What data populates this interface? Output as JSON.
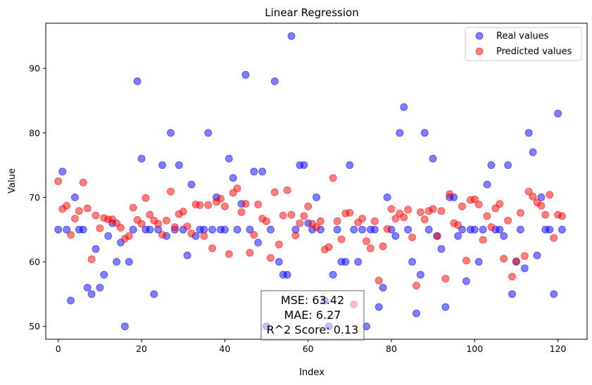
{
  "chart_data": {
    "type": "scatter",
    "title": "Linear Regression",
    "xlabel": "Index",
    "ylabel": "Value",
    "xlim": [
      -3,
      127
    ],
    "ylim": [
      48,
      97
    ],
    "xticks": [
      0,
      20,
      40,
      60,
      80,
      100,
      120
    ],
    "yticks": [
      50,
      60,
      70,
      80,
      90
    ],
    "grid": false,
    "legend_position": "top-right",
    "series": [
      {
        "name": "Real values",
        "color": "#0000ff",
        "x": [
          0,
          1,
          2,
          3,
          4,
          5,
          6,
          7,
          8,
          9,
          10,
          11,
          12,
          13,
          14,
          15,
          16,
          17,
          18,
          19,
          20,
          21,
          22,
          23,
          24,
          25,
          26,
          27,
          28,
          29,
          30,
          31,
          32,
          33,
          34,
          35,
          36,
          37,
          38,
          39,
          40,
          41,
          42,
          43,
          44,
          45,
          46,
          47,
          48,
          49,
          50,
          51,
          52,
          53,
          54,
          55,
          56,
          57,
          58,
          59,
          60,
          61,
          62,
          63,
          64,
          65,
          66,
          67,
          68,
          69,
          70,
          71,
          72,
          73,
          74,
          75,
          76,
          77,
          78,
          79,
          80,
          81,
          82,
          83,
          84,
          85,
          86,
          87,
          88,
          89,
          90,
          91,
          92,
          93,
          94,
          95,
          96,
          97,
          98,
          99,
          100,
          101,
          102,
          103,
          104,
          105,
          106,
          107,
          108,
          109,
          110,
          111,
          112,
          113,
          114,
          115,
          116,
          117,
          118,
          119,
          120,
          121
        ],
        "y": [
          65,
          74,
          65,
          54,
          70,
          65,
          65,
          56,
          55,
          62,
          56,
          58,
          64,
          66,
          60,
          63,
          50,
          60,
          65,
          88,
          76,
          65,
          65,
          55,
          65,
          75,
          64,
          80,
          65,
          75,
          65,
          61,
          72,
          64,
          65,
          65,
          80,
          65,
          70,
          65,
          65,
          76,
          73,
          65,
          69,
          89,
          65,
          74,
          63,
          74,
          50,
          65,
          88,
          60,
          58,
          58,
          95,
          65,
          75,
          75,
          66,
          65,
          70,
          65,
          54,
          50,
          58,
          65,
          60,
          60,
          75,
          65,
          60,
          65,
          50,
          65,
          65,
          53,
          56,
          70,
          65,
          64,
          80,
          84,
          65,
          60,
          52,
          58,
          80,
          65,
          76,
          64,
          62,
          53,
          70,
          70,
          64,
          65,
          57,
          65,
          65,
          60,
          65,
          72,
          75,
          65,
          65,
          64,
          75,
          55,
          60,
          65,
          59,
          80,
          77,
          61,
          70,
          65,
          65,
          55,
          83,
          65
        ]
      },
      {
        "name": "Predicted values",
        "color": "#ff0000",
        "x": [
          0,
          1,
          2,
          3,
          4,
          5,
          6,
          7,
          8,
          9,
          10,
          11,
          12,
          13,
          14,
          15,
          16,
          17,
          18,
          19,
          20,
          21,
          22,
          23,
          24,
          25,
          26,
          27,
          28,
          29,
          30,
          31,
          32,
          33,
          34,
          35,
          36,
          37,
          38,
          39,
          40,
          41,
          42,
          43,
          44,
          45,
          46,
          47,
          48,
          49,
          50,
          51,
          52,
          53,
          54,
          55,
          56,
          57,
          58,
          59,
          60,
          61,
          62,
          63,
          64,
          65,
          66,
          67,
          68,
          69,
          70,
          71,
          72,
          73,
          74,
          75,
          76,
          77,
          78,
          79,
          80,
          81,
          82,
          83,
          84,
          85,
          86,
          87,
          88,
          89,
          90,
          91,
          92,
          93,
          94,
          95,
          96,
          97,
          98,
          99,
          100,
          101,
          102,
          103,
          104,
          105,
          106,
          107,
          108,
          109,
          110,
          111,
          112,
          113,
          114,
          115,
          116,
          117,
          118,
          119,
          120,
          121
        ],
        "y": [
          72.5,
          68.2,
          68.7,
          64.2,
          66.7,
          67.9,
          72.3,
          68.3,
          60.4,
          67.2,
          65.2,
          66.8,
          66.6,
          66.6,
          66.0,
          65.3,
          63.6,
          64.0,
          68.4,
          66.5,
          65.9,
          69.9,
          67.3,
          66.4,
          65.9,
          64.2,
          66.4,
          70.9,
          65.4,
          67.4,
          67.8,
          65.5,
          64.4,
          68.9,
          68.8,
          64.0,
          68.8,
          62.1,
          69.3,
          69.8,
          68.6,
          61.2,
          70.7,
          71.4,
          67.7,
          69.0,
          61.4,
          64.2,
          68.9,
          66.7,
          66.3,
          60.6,
          70.8,
          62.7,
          67.2,
          71.1,
          67.3,
          64.1,
          66.0,
          67.1,
          68.6,
          65.9,
          65.4,
          66.3,
          61.9,
          62.3,
          73.0,
          66.3,
          63.5,
          67.5,
          67.6,
          53.4,
          66.1,
          66.7,
          63.2,
          62.1,
          66.3,
          57.1,
          62.4,
          65.1,
          68.2,
          66.7,
          67.5,
          66.9,
          68.1,
          63.8,
          56.3,
          67.7,
          66.6,
          67.9,
          68.2,
          64.0,
          67.9,
          57.4,
          70.5,
          66.0,
          65.7,
          68.6,
          60.2,
          69.6,
          69.7,
          68.9,
          63.4,
          67.1,
          65.4,
          68.3,
          69.0,
          60.5,
          66.4,
          57.7,
          60.1,
          67.6,
          60.9,
          70.9,
          70.1,
          69.2,
          68.7,
          67.3,
          70.4,
          63.7,
          67.3,
          67.1
        ]
      }
    ],
    "annotation": {
      "mse": "MSE: 63.42",
      "mae": "MAE: 6.27",
      "r2": "R^2 Score: 0.13"
    }
  }
}
